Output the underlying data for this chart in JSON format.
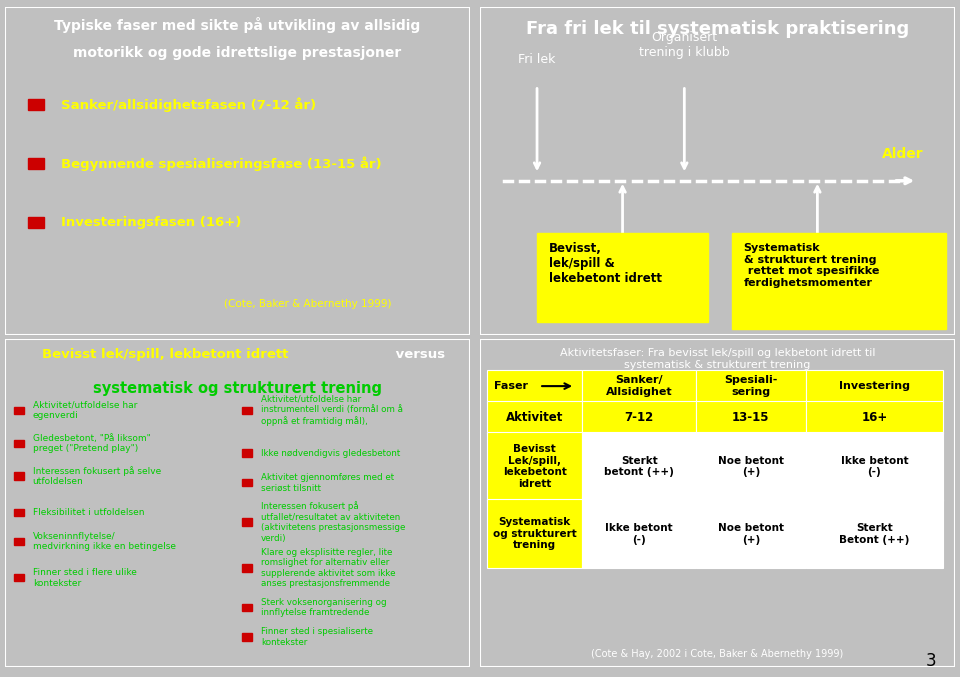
{
  "bg_dark_blue": "#00008B",
  "white": "#FFFFFF",
  "yellow": "#FFFF00",
  "green_text": "#00CC00",
  "red_bullet": "#CC0000",
  "yellow_box": "#FFFF00",
  "black": "#000000",
  "panel1_title_line1": "Typiske faser med sikte på utvikling av allsidig",
  "panel1_title_line2": "motorikk og gode idrettslige prestasjoner",
  "panel1_bullets": [
    "Sanker/allsidighetsfasen (7-12 år)",
    "Begynnende spesialiseringsfase (13-15 år)",
    "Investeringsfasen (16+)"
  ],
  "panel1_citation": "(Cote, Baker & Abernethy 1999)",
  "panel2_title": "Fra fri lek til systematisk praktisering",
  "panel2_fri_lek": "Fri lek",
  "panel2_organisert": "Organisert\ntrening i klubb",
  "panel2_alder": "Alder",
  "panel2_box1": "Bevisst,\nlek/spill &\nlekebetont idrett",
  "panel2_box2": "Systematisk\n& strukturert trening\n rettet mot spesifikke\nferdighetsmomenter",
  "panel3_title_yellow": "Bevisst lek/spill, lekbetont idrett",
  "panel3_title_white": " versus",
  "panel3_title2": "systematisk og strukturert trening",
  "panel3_left": [
    "Aktivitet/utfoldelse har\negenverdi",
    "Gledesbetont, \"På liksom\"\npreget (\"Pretend play\")",
    "Interessen fokusert på selve\nutfoldelsen",
    "Fleksibilitet i utfoldelsen",
    "Vokseninnflytelse/\nmedvirkning ikke en betingelse",
    "Finner sted i flere ulike\nkontekster"
  ],
  "panel3_right": [
    "Aktivitet/utfoldelse har\ninstrumentell verdi (formål om å\noppnå et framtidig mål),",
    "Ikke nødvendigvis gledesbetont",
    "Aktivitet gjennomføres med et\nseriøst tilsnitt",
    "Interessen fokusert på\nutfallet/resultatet av aktiviteten\n(aktivitetens prestasjonsmessige\nverdi)",
    "Klare og eksplisitte regler, lite\nromslighet for alternativ eller\nsupplerende aktivitet som ikke\nanses prestasjonsfremmende",
    "Sterk voksenorganisering og\ninnflytelse framtredende",
    "Finner sted i spesialiserte\nkontekster"
  ],
  "panel4_title": "Aktivitetsfaser: Fra bevisst lek/spill og lekbetont idrett til\nsystematisk & strukturert trening",
  "page_num": "3"
}
